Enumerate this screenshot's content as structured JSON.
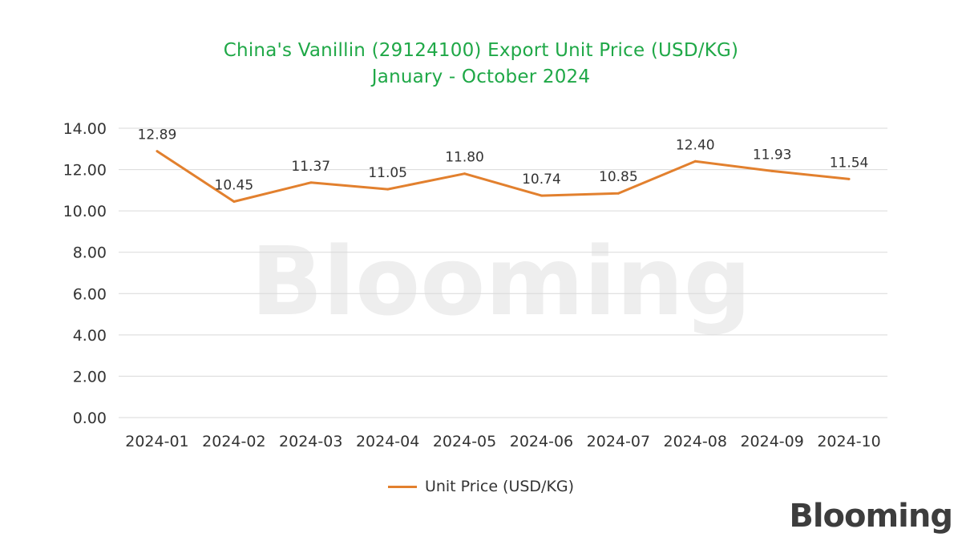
{
  "chart_data": {
    "type": "line",
    "title": "China's Vanillin (29124100) Export Unit Price (USD/KG)",
    "subtitle": "January - October 2024",
    "categories": [
      "2024-01",
      "2024-02",
      "2024-03",
      "2024-04",
      "2024-05",
      "2024-06",
      "2024-07",
      "2024-08",
      "2024-09",
      "2024-10"
    ],
    "series": [
      {
        "name": "Unit Price (USD/KG)",
        "values": [
          12.89,
          10.45,
          11.37,
          11.05,
          11.8,
          10.74,
          10.85,
          12.4,
          11.93,
          11.54
        ],
        "labels": [
          "12.89",
          "10.45",
          "11.37",
          "11.05",
          "11.80",
          "10.74",
          "10.85",
          "12.40",
          "11.93",
          "11.54"
        ],
        "color": "#e2802e"
      }
    ],
    "y_ticks": [
      "0.00",
      "2.00",
      "4.00",
      "6.00",
      "8.00",
      "10.00",
      "12.00",
      "14.00"
    ],
    "ylim": [
      0,
      14
    ],
    "grid": true,
    "legend_position": "bottom"
  },
  "colors": {
    "title": "#1fa847",
    "line": "#e2802e",
    "grid": "#d9d9d9",
    "text": "#333333"
  },
  "watermark": "Blooming",
  "brand": "Blooming"
}
